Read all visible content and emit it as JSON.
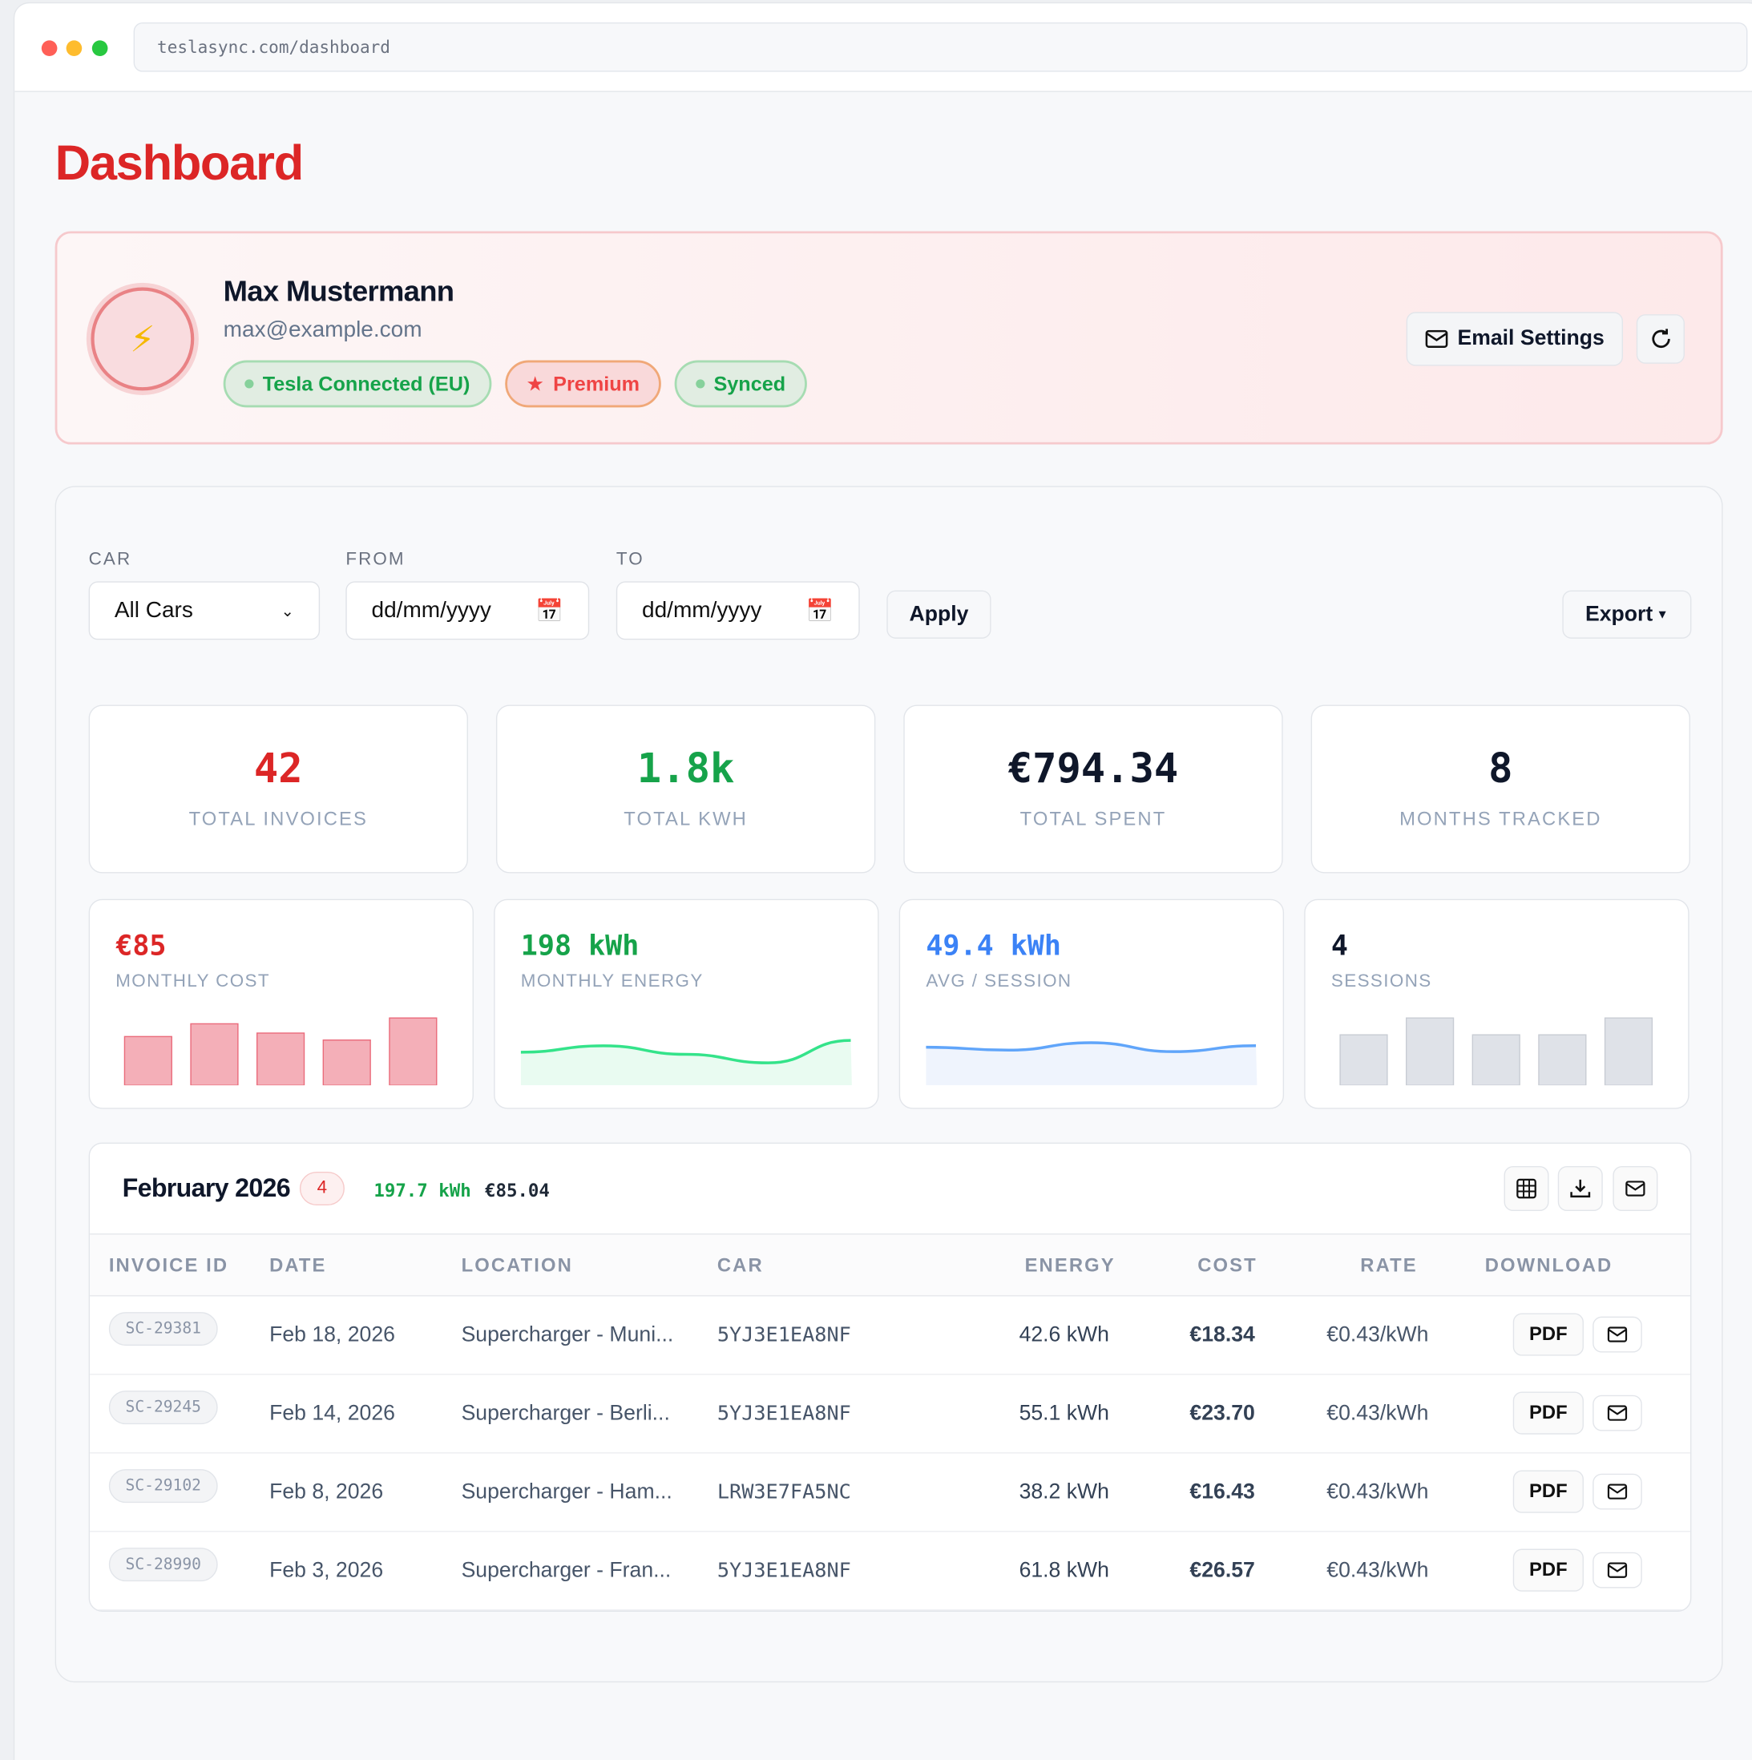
{
  "browser": {
    "url": "teslasync.com/dashboard"
  },
  "page_title": "Dashboard",
  "profile": {
    "name": "Max Mustermann",
    "email": "max@example.com",
    "badges": [
      "Tesla Connected (EU)",
      "Premium",
      "Synced"
    ],
    "email_settings": "Email Settings"
  },
  "filters": {
    "car_label": "CAR",
    "car_value": "All Cars",
    "from_label": "FROM",
    "from_placeholder": "dd/mm/yyyy",
    "to_label": "TO",
    "to_placeholder": "dd/mm/yyyy",
    "apply": "Apply",
    "export": "Export"
  },
  "stats": [
    {
      "value": "42",
      "label": "TOTAL INVOICES",
      "color": "#dc2626"
    },
    {
      "value": "1.8k",
      "label": "TOTAL KWH",
      "color": "#16a34a"
    },
    {
      "value": "€794.34",
      "label": "TOTAL SPENT",
      "color": "#0f172a"
    },
    {
      "value": "8",
      "label": "MONTHS TRACKED",
      "color": "#0f172a"
    }
  ],
  "minis": [
    {
      "value": "€85",
      "label": "MONTHLY COST",
      "color": "#dc2626",
      "type": "bar",
      "spark": [
        42,
        53,
        45,
        39,
        58
      ]
    },
    {
      "value": "198 kWh",
      "label": "MONTHLY ENERGY",
      "color": "#16a34a",
      "type": "line",
      "spark": [
        55,
        61,
        53,
        45,
        66
      ]
    },
    {
      "value": "49.4 kWh",
      "label": "AVG / SESSION",
      "color": "#3b82f6",
      "type": "line",
      "spark": [
        52,
        50,
        55,
        49,
        53
      ]
    },
    {
      "value": "4",
      "label": "SESSIONS",
      "color": "#0f172a",
      "type": "bar",
      "spark": [
        3,
        4,
        3,
        3,
        4
      ]
    }
  ],
  "month": {
    "title": "February 2026",
    "count": "4",
    "kwh": "197.7 kWh",
    "cost": "€85.04"
  },
  "table": {
    "headers": [
      "INVOICE ID",
      "DATE",
      "LOCATION",
      "CAR",
      "ENERGY",
      "COST",
      "RATE",
      "DOWNLOAD"
    ],
    "pdf_label": "PDF",
    "rows": [
      [
        "SC-29381",
        "Feb 18, 2026",
        "Supercharger - Muni...",
        "5YJ3E1EA8NF",
        "42.6 kWh",
        "€18.34",
        "€0.43/kWh"
      ],
      [
        "SC-29245",
        "Feb 14, 2026",
        "Supercharger - Berli...",
        "5YJ3E1EA8NF",
        "55.1 kWh",
        "€23.70",
        "€0.43/kWh"
      ],
      [
        "SC-29102",
        "Feb 8, 2026",
        "Supercharger - Ham...",
        "LRW3E7FA5NC",
        "38.2 kWh",
        "€16.43",
        "€0.43/kWh"
      ],
      [
        "SC-28990",
        "Feb 3, 2026",
        "Supercharger - Fran...",
        "5YJ3E1EA8NF",
        "61.8 kWh",
        "€26.57",
        "€0.43/kWh"
      ]
    ]
  }
}
